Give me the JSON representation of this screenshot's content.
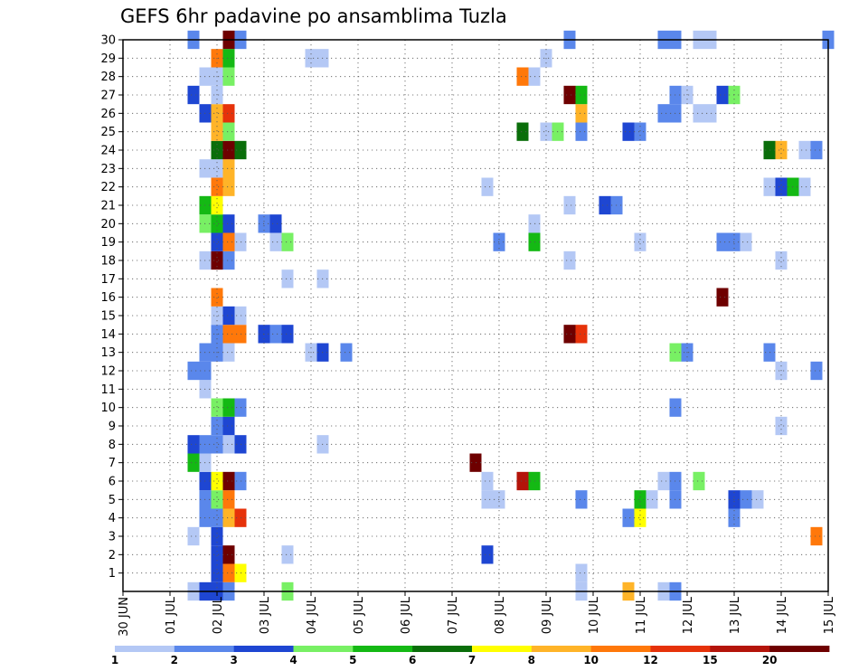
{
  "chart_data": {
    "type": "heatmap",
    "title": "GEFS 6hr padavine po ansamblima Tuzla",
    "x_tick_labels": [
      "30 JUN",
      "01 JUL",
      "02 JUL",
      "03 JUL",
      "04 JUL",
      "05 JUL",
      "06 JUL",
      "07 JUL",
      "08 JUL",
      "09 JUL",
      "10 JUL",
      "11 JUL",
      "12 JUL",
      "13 JUL",
      "14 JUL",
      "15 JUL"
    ],
    "xlim_days": [
      0,
      15
    ],
    "y_tick_labels": [
      "1",
      "2",
      "3",
      "4",
      "5",
      "6",
      "7",
      "8",
      "9",
      "10",
      "11",
      "12",
      "13",
      "14",
      "15",
      "16",
      "17",
      "18",
      "19",
      "20",
      "21",
      "22",
      "23",
      "24",
      "25",
      "26",
      "27",
      "28",
      "29",
      "30"
    ],
    "ylim": [
      0,
      30
    ],
    "grid": true,
    "colorbar": {
      "labels": [
        "1",
        "2",
        "3",
        "4",
        "5",
        "6",
        "7",
        "8",
        "10",
        "12",
        "15",
        "20"
      ],
      "colors": [
        "#b4c8f5",
        "#5a87eb",
        "#1e46d2",
        "#78f064",
        "#14b914",
        "#0a6e0a",
        "#ffff00",
        "#ffb428",
        "#ff780a",
        "#e6320a",
        "#b4140a",
        "#6e0000"
      ]
    },
    "cells": [
      [
        1.5,
        0,
        0
      ],
      [
        1.75,
        0,
        2
      ],
      [
        2.0,
        0,
        2
      ],
      [
        2.25,
        0,
        1
      ],
      [
        3.5,
        0,
        3
      ],
      [
        9.75,
        0,
        0
      ],
      [
        10.75,
        0,
        7
      ],
      [
        11.5,
        0,
        0
      ],
      [
        11.75,
        0,
        1
      ],
      [
        2.0,
        1,
        2
      ],
      [
        2.25,
        1,
        8
      ],
      [
        2.5,
        1,
        6
      ],
      [
        9.75,
        1,
        0
      ],
      [
        2.0,
        2,
        2
      ],
      [
        2.25,
        2,
        11
      ],
      [
        3.5,
        2,
        0
      ],
      [
        7.75,
        2,
        2
      ],
      [
        1.5,
        3,
        0
      ],
      [
        2.0,
        3,
        2
      ],
      [
        14.75,
        3,
        8
      ],
      [
        1.75,
        4,
        1
      ],
      [
        2.0,
        4,
        1
      ],
      [
        2.25,
        4,
        7
      ],
      [
        2.5,
        4,
        9
      ],
      [
        10.75,
        4,
        1
      ],
      [
        11.0,
        4,
        6
      ],
      [
        13.0,
        4,
        1
      ],
      [
        1.75,
        5,
        1
      ],
      [
        2.0,
        5,
        3
      ],
      [
        2.25,
        5,
        8
      ],
      [
        7.75,
        5,
        0
      ],
      [
        8.0,
        5,
        0
      ],
      [
        9.75,
        5,
        1
      ],
      [
        11.0,
        5,
        4
      ],
      [
        11.25,
        5,
        0
      ],
      [
        11.75,
        5,
        1
      ],
      [
        13.0,
        5,
        2
      ],
      [
        13.25,
        5,
        1
      ],
      [
        13.5,
        5,
        0
      ],
      [
        1.75,
        6,
        2
      ],
      [
        2.0,
        6,
        6
      ],
      [
        2.25,
        6,
        11
      ],
      [
        2.5,
        6,
        1
      ],
      [
        7.75,
        6,
        0
      ],
      [
        8.5,
        6,
        10
      ],
      [
        8.75,
        6,
        4
      ],
      [
        11.5,
        6,
        0
      ],
      [
        11.75,
        6,
        1
      ],
      [
        12.25,
        6,
        3
      ],
      [
        1.5,
        7,
        4
      ],
      [
        1.75,
        7,
        0
      ],
      [
        7.5,
        7,
        11
      ],
      [
        1.5,
        8,
        2
      ],
      [
        1.75,
        8,
        1
      ],
      [
        2.0,
        8,
        1
      ],
      [
        2.25,
        8,
        0
      ],
      [
        2.5,
        8,
        2
      ],
      [
        4.25,
        8,
        0
      ],
      [
        2.0,
        9,
        1
      ],
      [
        2.25,
        9,
        2
      ],
      [
        14.0,
        9,
        0
      ],
      [
        2.0,
        10,
        3
      ],
      [
        2.25,
        10,
        4
      ],
      [
        2.5,
        10,
        1
      ],
      [
        11.75,
        10,
        1
      ],
      [
        1.75,
        11,
        0
      ],
      [
        1.5,
        12,
        1
      ],
      [
        1.75,
        12,
        1
      ],
      [
        14.0,
        12,
        0
      ],
      [
        14.75,
        12,
        1
      ],
      [
        1.75,
        13,
        1
      ],
      [
        2.0,
        13,
        1
      ],
      [
        2.25,
        13,
        0
      ],
      [
        4.0,
        13,
        0
      ],
      [
        4.25,
        13,
        2
      ],
      [
        4.75,
        13,
        1
      ],
      [
        11.75,
        13,
        3
      ],
      [
        12.0,
        13,
        1
      ],
      [
        13.75,
        13,
        1
      ],
      [
        2.0,
        14,
        1
      ],
      [
        2.25,
        14,
        8
      ],
      [
        2.5,
        14,
        8
      ],
      [
        3.0,
        14,
        2
      ],
      [
        3.25,
        14,
        1
      ],
      [
        3.5,
        14,
        2
      ],
      [
        9.5,
        14,
        11
      ],
      [
        9.75,
        14,
        9
      ],
      [
        2.0,
        15,
        0
      ],
      [
        2.25,
        15,
        2
      ],
      [
        2.5,
        15,
        0
      ],
      [
        2.0,
        16,
        8
      ],
      [
        12.75,
        16,
        11
      ],
      [
        3.5,
        17,
        0
      ],
      [
        4.25,
        17,
        0
      ],
      [
        1.75,
        18,
        0
      ],
      [
        2.0,
        18,
        11
      ],
      [
        2.25,
        18,
        1
      ],
      [
        9.5,
        18,
        0
      ],
      [
        14.0,
        18,
        0
      ],
      [
        2.0,
        19,
        2
      ],
      [
        2.25,
        19,
        8
      ],
      [
        2.5,
        19,
        0
      ],
      [
        3.25,
        19,
        0
      ],
      [
        3.5,
        19,
        3
      ],
      [
        8.0,
        19,
        1
      ],
      [
        8.75,
        19,
        4
      ],
      [
        11.0,
        19,
        0
      ],
      [
        12.75,
        19,
        1
      ],
      [
        13.0,
        19,
        1
      ],
      [
        13.25,
        19,
        0
      ],
      [
        1.75,
        20,
        3
      ],
      [
        2.0,
        20,
        4
      ],
      [
        2.25,
        20,
        2
      ],
      [
        3.0,
        20,
        1
      ],
      [
        3.25,
        20,
        2
      ],
      [
        8.75,
        20,
        0
      ],
      [
        1.75,
        21,
        4
      ],
      [
        2.0,
        21,
        6
      ],
      [
        9.5,
        21,
        0
      ],
      [
        10.25,
        21,
        2
      ],
      [
        10.5,
        21,
        1
      ],
      [
        2.0,
        22,
        8
      ],
      [
        2.25,
        22,
        7
      ],
      [
        7.75,
        22,
        0
      ],
      [
        13.75,
        22,
        0
      ],
      [
        14.0,
        22,
        2
      ],
      [
        14.25,
        22,
        4
      ],
      [
        14.5,
        22,
        0
      ],
      [
        1.75,
        23,
        0
      ],
      [
        2.0,
        23,
        0
      ],
      [
        2.25,
        23,
        7
      ],
      [
        2.0,
        24,
        5
      ],
      [
        2.25,
        24,
        11
      ],
      [
        2.5,
        24,
        5
      ],
      [
        13.75,
        24,
        5
      ],
      [
        14.0,
        24,
        7
      ],
      [
        14.5,
        24,
        0
      ],
      [
        14.75,
        24,
        1
      ],
      [
        2.0,
        25,
        7
      ],
      [
        2.25,
        25,
        3
      ],
      [
        8.5,
        25,
        5
      ],
      [
        9.0,
        25,
        0
      ],
      [
        9.25,
        25,
        3
      ],
      [
        9.75,
        25,
        1
      ],
      [
        10.75,
        25,
        2
      ],
      [
        11.0,
        25,
        1
      ],
      [
        1.75,
        26,
        2
      ],
      [
        2.0,
        26,
        7
      ],
      [
        2.25,
        26,
        9
      ],
      [
        9.75,
        26,
        7
      ],
      [
        11.5,
        26,
        1
      ],
      [
        11.75,
        26,
        1
      ],
      [
        12.25,
        26,
        0
      ],
      [
        12.5,
        26,
        0
      ],
      [
        1.5,
        27,
        2
      ],
      [
        2.0,
        27,
        0
      ],
      [
        9.5,
        27,
        11
      ],
      [
        9.75,
        27,
        4
      ],
      [
        11.75,
        27,
        1
      ],
      [
        12.0,
        27,
        0
      ],
      [
        12.75,
        27,
        2
      ],
      [
        13.0,
        27,
        3
      ],
      [
        1.75,
        28,
        0
      ],
      [
        2.0,
        28,
        0
      ],
      [
        2.25,
        28,
        3
      ],
      [
        8.5,
        28,
        8
      ],
      [
        8.75,
        28,
        0
      ],
      [
        2.0,
        29,
        8
      ],
      [
        2.25,
        29,
        4
      ],
      [
        4.0,
        29,
        0
      ],
      [
        4.25,
        29,
        0
      ],
      [
        9.0,
        29,
        0
      ],
      [
        1.5,
        30,
        1
      ],
      [
        2.25,
        30,
        11
      ],
      [
        2.5,
        30,
        1
      ],
      [
        9.5,
        30,
        1
      ],
      [
        11.5,
        30,
        1
      ],
      [
        11.75,
        30,
        1
      ],
      [
        12.25,
        30,
        0
      ],
      [
        12.5,
        30,
        0
      ],
      [
        15.0,
        30,
        1
      ]
    ]
  }
}
